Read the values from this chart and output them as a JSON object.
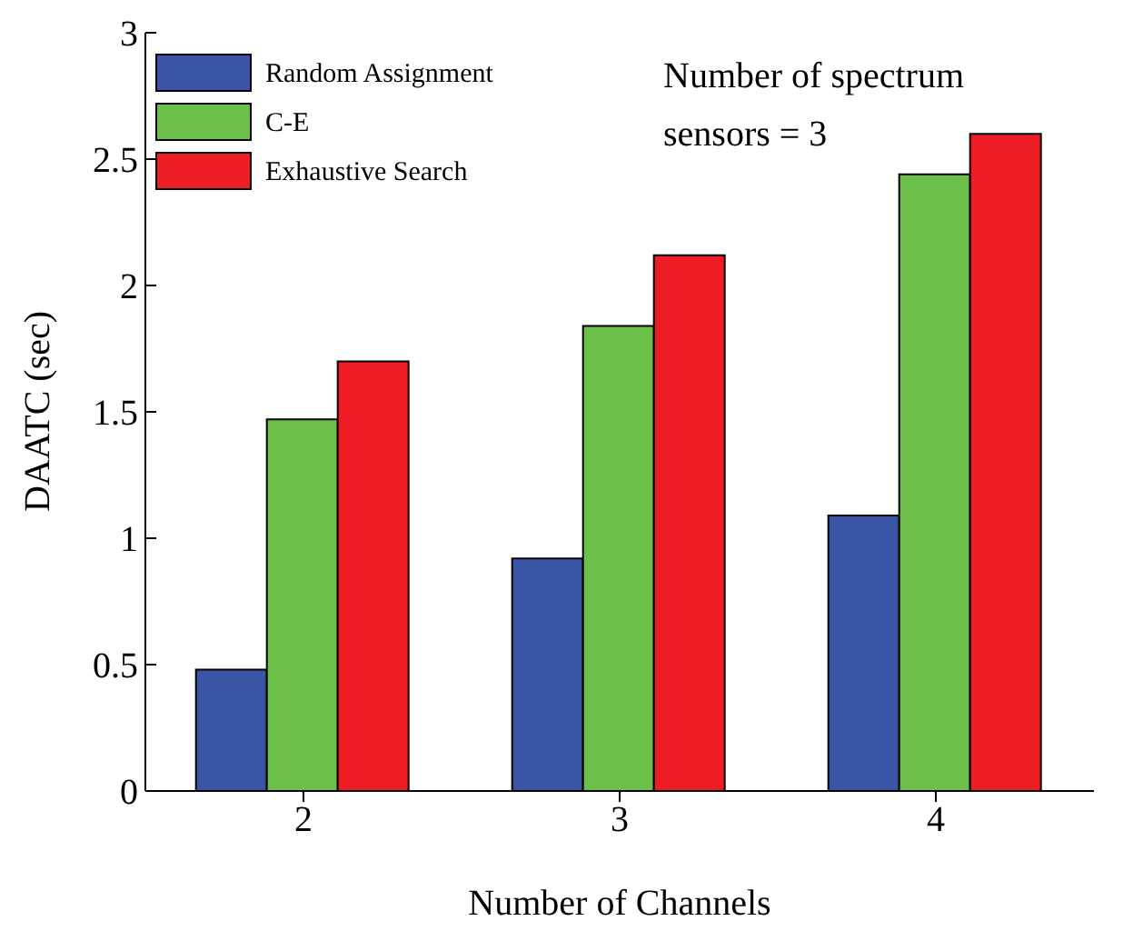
{
  "chart_data": {
    "type": "bar",
    "xlabel": "Number of Channels",
    "ylabel": "DAATC (sec)",
    "categories": [
      "2",
      "3",
      "4"
    ],
    "series": [
      {
        "name": "Random Assignment",
        "color": "#3a55a5",
        "values": [
          0.48,
          0.92,
          1.09
        ]
      },
      {
        "name": "C-E",
        "color": "#6cc04a",
        "values": [
          1.47,
          1.84,
          2.44
        ]
      },
      {
        "name": "Exhaustive Search",
        "color": "#ee1c25",
        "values": [
          1.7,
          2.12,
          2.6
        ]
      }
    ],
    "ylim": [
      0,
      3
    ],
    "yticks": [
      0,
      0.5,
      1,
      1.5,
      2,
      2.5,
      3
    ],
    "legend": "top left",
    "annotations": [
      "Number of spectrum sensors = 3"
    ]
  }
}
